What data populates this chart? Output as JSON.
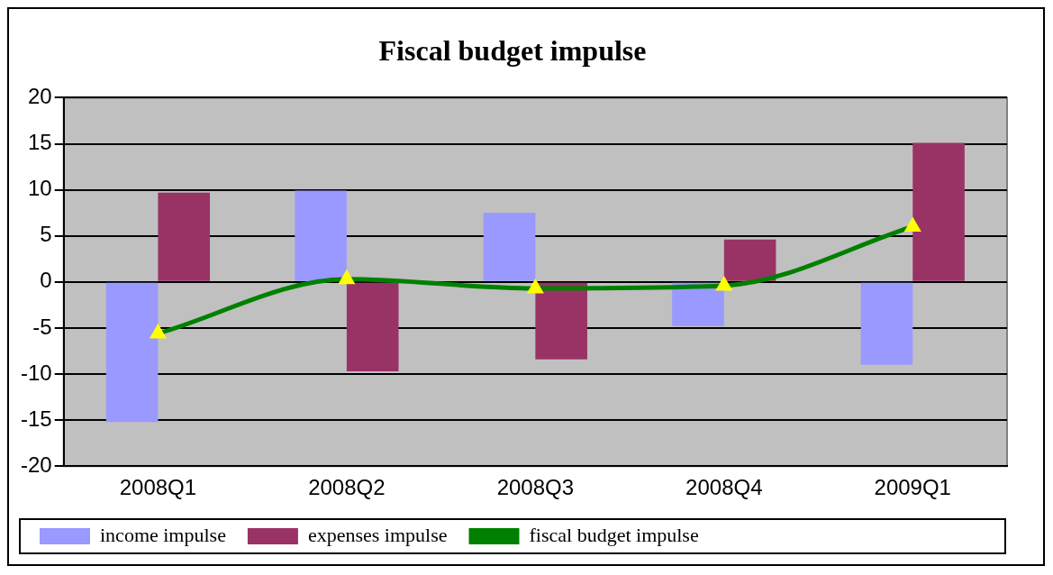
{
  "chart_data": {
    "type": "bar",
    "title": "Fiscal budget impulse",
    "categories": [
      "2008Q1",
      "2008Q2",
      "2008Q3",
      "2008Q4",
      "2009Q1"
    ],
    "series": [
      {
        "name": "income impulse",
        "color": "#9999ff",
        "values": [
          -15.2,
          9.9,
          7.5,
          -4.8,
          -9.0
        ]
      },
      {
        "name": "expenses impulse",
        "color": "#993366",
        "values": [
          9.7,
          -9.7,
          -8.4,
          4.6,
          15.1
        ]
      },
      {
        "name": "fiscal budget impulse",
        "type": "line",
        "color": "#008000",
        "marker": "triangle",
        "values": [
          -5.6,
          0.3,
          -0.7,
          -0.4,
          6.0
        ]
      }
    ],
    "ylim": [
      -20,
      20
    ],
    "yticks": [
      -20,
      -15,
      -10,
      -5,
      0,
      5,
      10,
      15,
      20
    ],
    "grid": "y",
    "legend": "bottom"
  }
}
